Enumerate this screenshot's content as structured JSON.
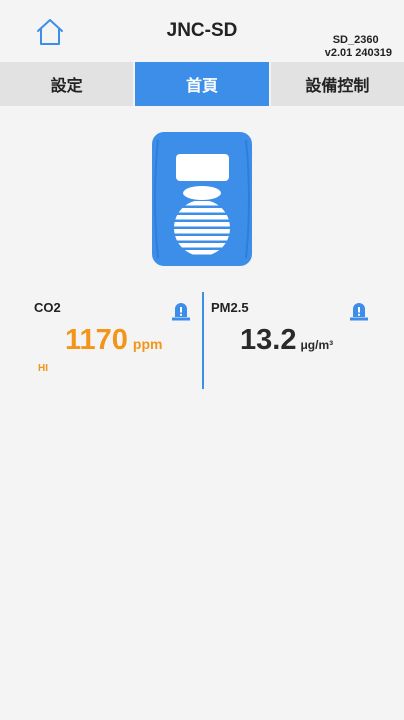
{
  "header": {
    "title": "JNC-SD",
    "device_id": "SD_2360",
    "version": "v2.01 240319"
  },
  "tabs": [
    {
      "label": "設定",
      "active": false
    },
    {
      "label": "首頁",
      "active": true
    },
    {
      "label": "設備控制",
      "active": false
    }
  ],
  "sensors": {
    "co2": {
      "name": "CO2",
      "value": "1170",
      "unit": "ppm",
      "level": "HI",
      "color": "#f29518"
    },
    "pm25": {
      "name": "PM2.5",
      "value": "13.2",
      "unit": "μg/m³",
      "color": "#2a2a2a"
    }
  },
  "colors": {
    "accent": "#3c8ee9",
    "warning": "#f29518"
  },
  "icons": {
    "home": "home-icon",
    "device": "air-sensor-device-icon",
    "alarm": "alarm-light-icon"
  }
}
